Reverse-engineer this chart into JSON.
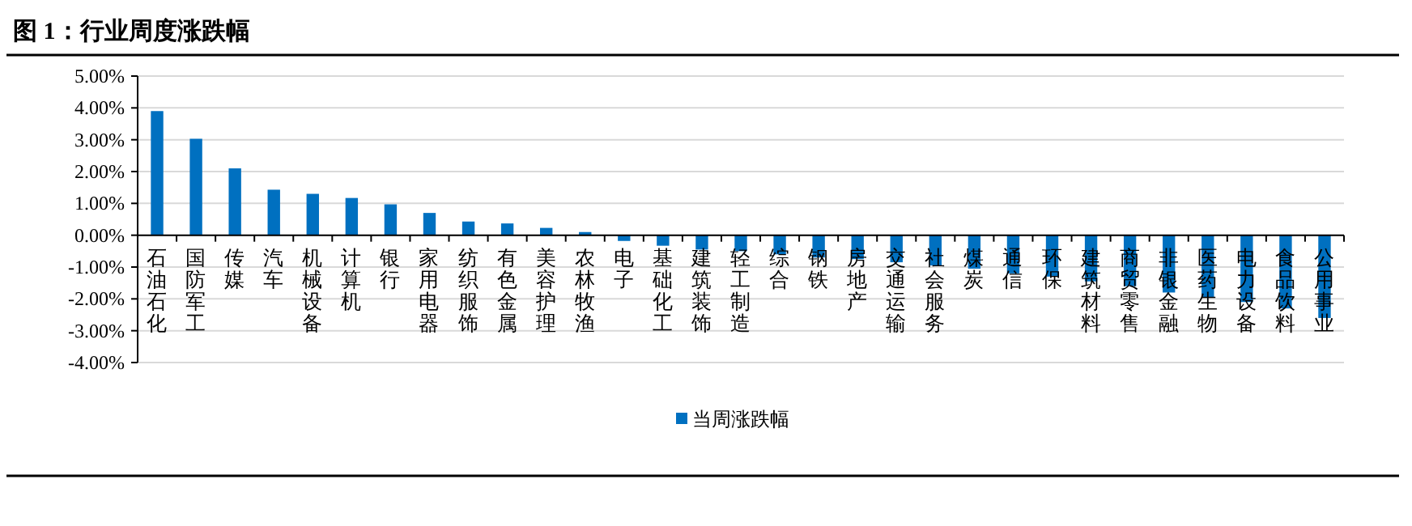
{
  "chart_data": {
    "type": "bar",
    "title": "图 1：行业周度涨跌幅",
    "categories": [
      "石油石化",
      "国防军工",
      "传媒",
      "汽车",
      "机械设备",
      "计算机",
      "银行",
      "家用电器",
      "纺织服饰",
      "有色金属",
      "美容护理",
      "农林牧渔",
      "电子",
      "基础化工",
      "建筑装饰",
      "轻工制造",
      "综合",
      "钢铁",
      "房地产",
      "交通运输",
      "社会服务",
      "煤炭",
      "通信",
      "环保",
      "建筑材料",
      "商贸零售",
      "非银金融",
      "医药生物",
      "电力设备",
      "食品饮料",
      "公用事业"
    ],
    "series": [
      {
        "name": "当周涨跌幅",
        "color": "#0070c0",
        "values": [
          3.9,
          3.03,
          2.1,
          1.43,
          1.3,
          1.17,
          0.97,
          0.7,
          0.43,
          0.37,
          0.23,
          0.1,
          -0.18,
          -0.33,
          -0.45,
          -0.5,
          -0.6,
          -0.7,
          -0.75,
          -0.85,
          -0.95,
          -1.05,
          -1.2,
          -1.3,
          -1.45,
          -1.6,
          -1.8,
          -1.95,
          -2.1,
          -2.3,
          -2.6
        ]
      }
    ],
    "ylim": [
      -4,
      5
    ],
    "yticks": [
      {
        "value": 5,
        "label": "5.00%"
      },
      {
        "value": 4,
        "label": "4.00%"
      },
      {
        "value": 3,
        "label": "3.00%"
      },
      {
        "value": 2,
        "label": "2.00%"
      },
      {
        "value": 1,
        "label": "1.00%"
      },
      {
        "value": 0,
        "label": "0.00%"
      },
      {
        "value": -1,
        "label": "-1.00%"
      },
      {
        "value": -2,
        "label": "-2.00%"
      },
      {
        "value": -3,
        "label": "-3.00%"
      },
      {
        "value": -4,
        "label": "-4.00%"
      }
    ],
    "grid": "y",
    "legend": "bottom"
  }
}
